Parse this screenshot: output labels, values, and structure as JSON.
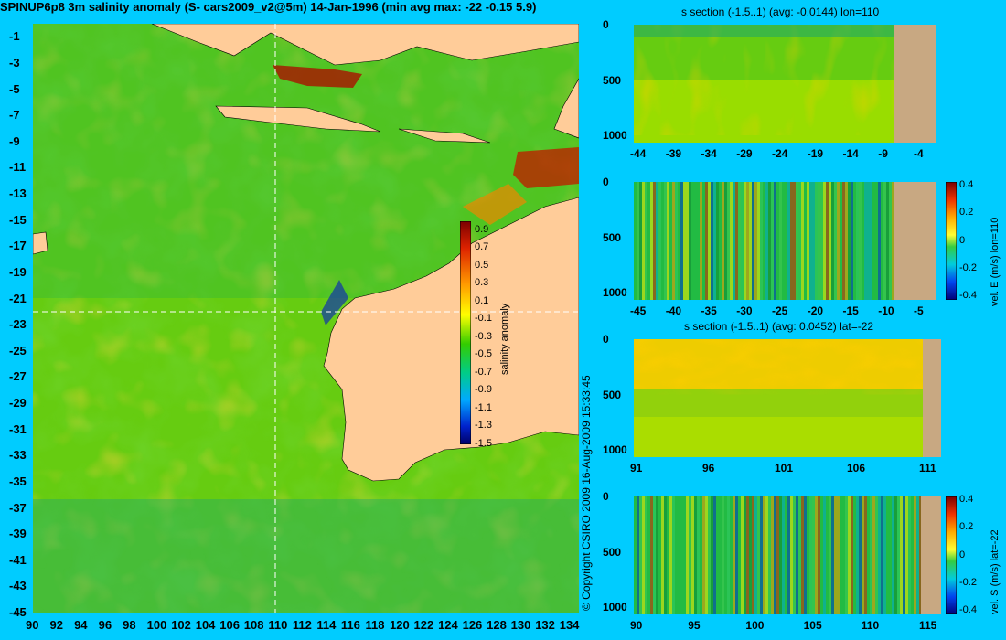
{
  "main": {
    "title": "SPINUP6p8 3m salinity anomaly (S- cars2009_v2@5m) 14-Jan-1996 (min avg max: -22 -0.15 5.9)",
    "map": {
      "lon_ticks": [
        "90",
        "92",
        "94",
        "96",
        "98",
        "100",
        "102",
        "104",
        "106",
        "108",
        "110",
        "112",
        "114",
        "116",
        "118",
        "120",
        "122",
        "124",
        "126",
        "128",
        "130",
        "132",
        "134"
      ],
      "lat_ticks": [
        "-1",
        "-3",
        "-5",
        "-7",
        "-9",
        "-11",
        "-13",
        "-15",
        "-17",
        "-19",
        "-21",
        "-23",
        "-25",
        "-27",
        "-29",
        "-31",
        "-33",
        "-35",
        "-37",
        "-39",
        "-41",
        "-43",
        "-45"
      ],
      "lon_range": [
        90,
        135
      ],
      "lat_range": [
        -45,
        0
      ],
      "section_lon": 110,
      "section_lat": -22,
      "land_color": "#ffcc99",
      "colorbar": {
        "label": "salinity anomaly",
        "ticks": [
          "0.9",
          "0.7",
          "0.5",
          "0.3",
          "0.1",
          "-0.1",
          "-0.3",
          "-0.5",
          "-0.7",
          "-0.9",
          "-1.1",
          "-1.3",
          "-1.5"
        ],
        "range": [
          -1.5,
          1.0
        ]
      }
    },
    "copyright": "© Copyright CSIRO 2009   16-Aug-2009 15:33:45"
  },
  "panels": {
    "p1": {
      "title": "s section (-1.5..1) (avg: -0.0144) lon=110",
      "y_ticks": [
        "0",
        "500",
        "1000"
      ],
      "x_ticks": [
        "-44",
        "-39",
        "-34",
        "-29",
        "-24",
        "-19",
        "-14",
        "-9",
        "-4"
      ]
    },
    "p2": {
      "title": "",
      "y_ticks": [
        "0",
        "500",
        "1000"
      ],
      "x_ticks": [
        "-45",
        "-40",
        "-35",
        "-30",
        "-25",
        "-20",
        "-15",
        "-10",
        "-5"
      ],
      "colorbar_ticks": [
        "0.4",
        "0.2",
        "0",
        "-0.2",
        "-0.4"
      ],
      "colorbar_label": "vel. E (m/s) lon=110"
    },
    "p3": {
      "title": "s section (-1.5..1) (avg: 0.0452) lat=-22",
      "y_ticks": [
        "0",
        "500",
        "1000"
      ],
      "x_ticks": [
        "91",
        "96",
        "101",
        "106",
        "111"
      ]
    },
    "p4": {
      "title": "",
      "y_ticks": [
        "0",
        "500",
        "1000"
      ],
      "x_ticks": [
        "90",
        "95",
        "100",
        "105",
        "110",
        "115"
      ],
      "colorbar_ticks": [
        "0.4",
        "0.2",
        "0",
        "-0.2",
        "-0.4"
      ],
      "colorbar_label": "vel. S (m/s) lat=-22"
    }
  }
}
